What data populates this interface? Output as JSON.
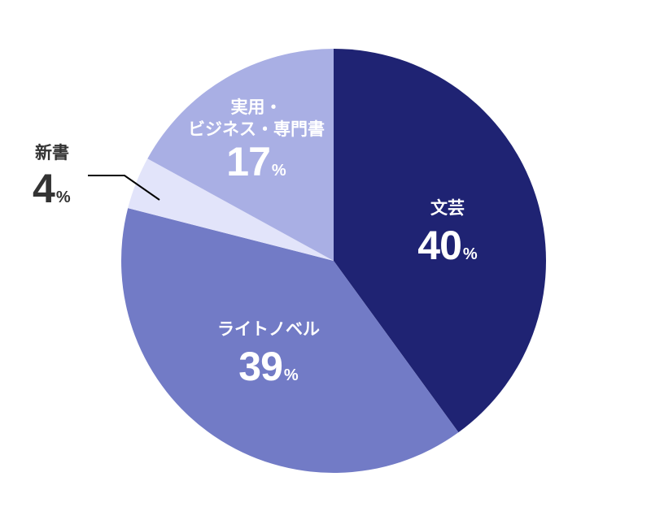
{
  "chart_data": {
    "type": "pie",
    "title": "",
    "categories": [
      "文芸",
      "ライトノベル",
      "新書",
      "実用・ビジネス・専門書"
    ],
    "values": [
      40,
      39,
      4,
      17
    ],
    "unit": "%",
    "colors": [
      "#1f2373",
      "#727bc6",
      "#e2e4fa",
      "#a9afe4"
    ],
    "start_angle": "12 o'clock, clockwise",
    "legend": "none (inline labels)"
  },
  "labels": {
    "bungei": {
      "name": "文芸",
      "value": "40",
      "unit": "%"
    },
    "light_novel": {
      "name": "ライトノベル",
      "value": "39",
      "unit": "%"
    },
    "shinsho": {
      "name": "新書",
      "value": "4",
      "unit": "%"
    },
    "practical": {
      "name_line1": "実用・",
      "name_line2": "ビジネス・専門書",
      "value": "17",
      "unit": "%"
    }
  }
}
